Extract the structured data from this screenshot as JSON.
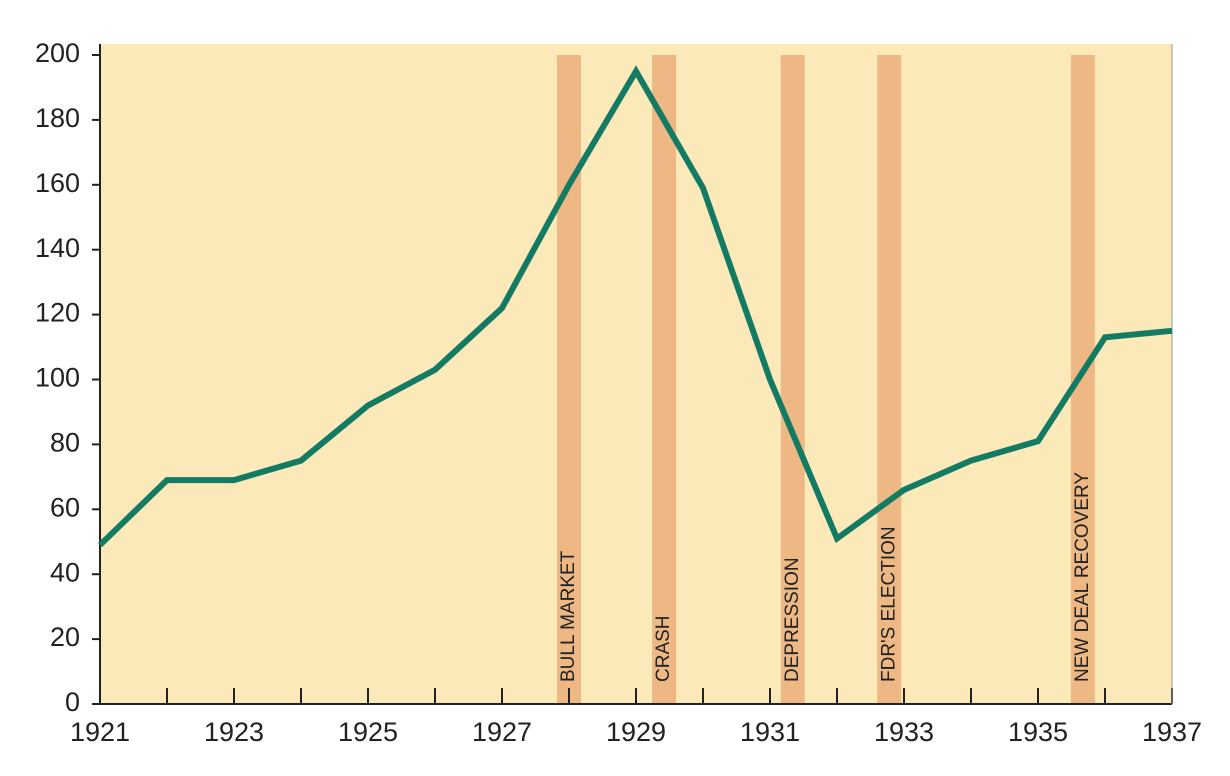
{
  "chart_data": {
    "type": "line",
    "x": [
      1921,
      1922,
      1923,
      1924,
      1925,
      1926,
      1927,
      1928,
      1929,
      1930,
      1931,
      1932,
      1933,
      1934,
      1935,
      1936,
      1937
    ],
    "values": [
      49,
      69,
      69,
      75,
      92,
      103,
      122,
      160,
      195,
      159,
      100,
      51,
      66,
      75,
      81,
      113,
      115
    ],
    "color": "#137a63",
    "background": "#fce9b9",
    "band_color": "#edb883",
    "annotations": [
      {
        "label": "BULL MARKET",
        "x": 1928.0
      },
      {
        "label": "CRASH",
        "x": 1929.42
      },
      {
        "label": "DEPRESSION",
        "x": 1931.34
      },
      {
        "label": "FDR'S ELECTION",
        "x": 1932.78
      },
      {
        "label": "NEW DEAL RECOVERY",
        "x": 1935.67
      }
    ],
    "xlim": [
      1921,
      1937
    ],
    "xticks": [
      1921,
      1923,
      1925,
      1927,
      1929,
      1931,
      1933,
      1935,
      1937
    ],
    "xminorticks": [
      1922,
      1924,
      1926,
      1928,
      1930,
      1932,
      1934,
      1936
    ],
    "ylim": [
      0,
      200
    ],
    "yticks": [
      0,
      20,
      40,
      60,
      80,
      100,
      120,
      140,
      160,
      180,
      200
    ],
    "grid": false
  }
}
